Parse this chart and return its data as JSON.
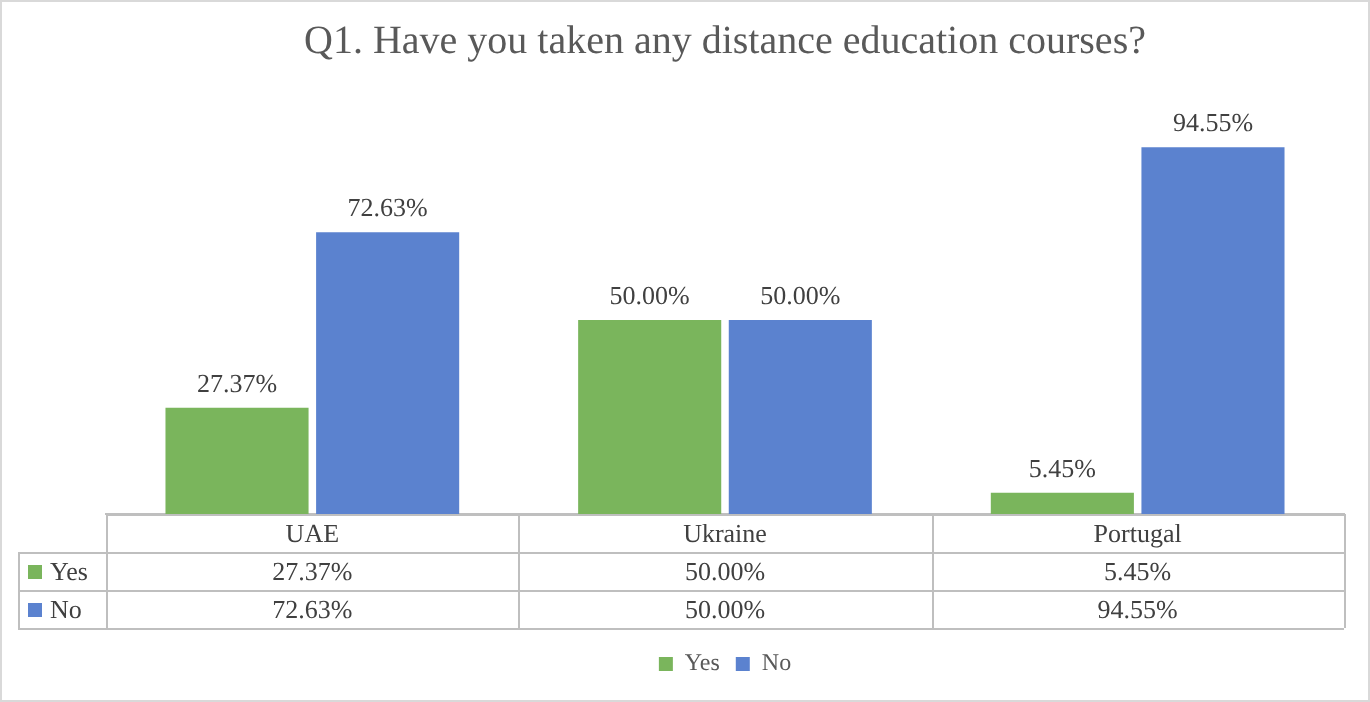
{
  "chart_data": {
    "type": "bar",
    "title": "Q1. Have you taken any distance education courses?",
    "categories": [
      "UAE",
      "Ukraine",
      "Portugal"
    ],
    "series": [
      {
        "name": "Yes",
        "color": "#7ab55c",
        "values": [
          27.37,
          50.0,
          5.45
        ],
        "value_labels": [
          "27.37%",
          "50.00%",
          "5.45%"
        ]
      },
      {
        "name": "No",
        "color": "#5b82cf",
        "values": [
          72.63,
          50.0,
          94.55
        ],
        "value_labels": [
          "72.63%",
          "50.00%",
          "94.55%"
        ]
      }
    ],
    "data_labels": true,
    "legend": "bottom"
  }
}
